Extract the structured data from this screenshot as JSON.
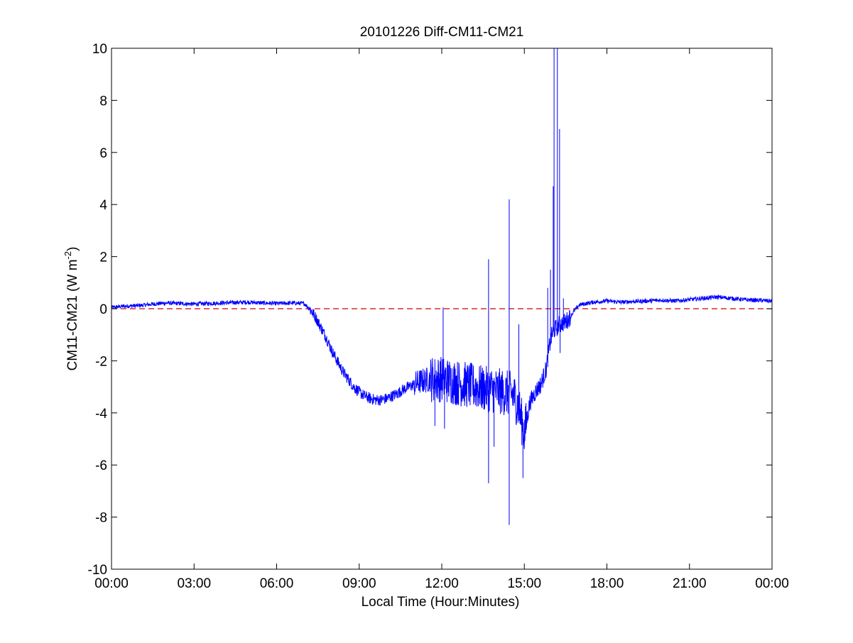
{
  "chart_data": {
    "type": "line",
    "title": "20101226 Diff-CM11-CM21",
    "xlabel": "Local Time (Hour:Minutes)",
    "ylabel_main": "CM11-CM21 (W m",
    "ylabel_sup": "-2",
    "ylabel_close": ")",
    "x_unit": "hours",
    "xlim": [
      0,
      24
    ],
    "ylim": [
      -10,
      10
    ],
    "x_tick_values": [
      0,
      3,
      6,
      9,
      12,
      15,
      18,
      21,
      24
    ],
    "x_tick_labels": [
      "00:00",
      "03:00",
      "06:00",
      "09:00",
      "12:00",
      "15:00",
      "18:00",
      "21:00",
      "00:00"
    ],
    "y_ticks": [
      10,
      8,
      6,
      4,
      2,
      0,
      -2,
      -4,
      -6,
      -8,
      -10
    ],
    "grid": false,
    "series": [
      {
        "color": "#0000ff",
        "style": "solid",
        "x": [
          0.0,
          0.5,
          1.0,
          1.5,
          2.0,
          2.5,
          3.0,
          3.5,
          4.0,
          4.5,
          5.0,
          5.5,
          6.0,
          6.5,
          7.0,
          7.2,
          7.4,
          7.6,
          7.8,
          8.0,
          8.2,
          8.4,
          8.6,
          8.8,
          9.0,
          9.2,
          9.4,
          9.6,
          9.8,
          10.0,
          10.2,
          10.4,
          10.6,
          10.8,
          11.0,
          11.2,
          11.4,
          11.6,
          11.8,
          12.0,
          12.2,
          12.4,
          12.6,
          12.8,
          13.0,
          13.2,
          13.4,
          13.6,
          13.8,
          14.0,
          14.2,
          14.4,
          14.6,
          14.8,
          15.0,
          15.2,
          15.4,
          15.6,
          15.8,
          15.9,
          16.0,
          16.1,
          16.2,
          16.3,
          16.4,
          16.5,
          16.6,
          16.8,
          17.0,
          17.5,
          18.0,
          18.5,
          19.0,
          19.5,
          20.0,
          20.5,
          21.0,
          21.5,
          22.0,
          22.5,
          23.0,
          23.5,
          24.0
        ],
        "y": [
          0.05,
          0.1,
          0.12,
          0.18,
          0.22,
          0.2,
          0.18,
          0.2,
          0.22,
          0.24,
          0.25,
          0.22,
          0.2,
          0.22,
          0.2,
          0.0,
          -0.3,
          -0.7,
          -1.1,
          -1.6,
          -2.0,
          -2.4,
          -2.7,
          -3.0,
          -3.2,
          -3.35,
          -3.45,
          -3.5,
          -3.5,
          -3.45,
          -3.35,
          -3.25,
          -3.1,
          -3.0,
          -2.9,
          -2.8,
          -2.75,
          -2.7,
          -2.7,
          -2.7,
          -2.75,
          -2.8,
          -2.85,
          -2.9,
          -2.95,
          -3.0,
          -3.05,
          -3.1,
          -3.1,
          -3.15,
          -3.2,
          -3.25,
          -3.3,
          -3.8,
          -4.8,
          -3.6,
          -3.2,
          -2.9,
          -2.3,
          -1.5,
          -1.0,
          -0.8,
          -0.7,
          -0.6,
          -0.55,
          -0.5,
          -0.4,
          -0.1,
          0.15,
          0.25,
          0.3,
          0.25,
          0.28,
          0.3,
          0.33,
          0.3,
          0.35,
          0.4,
          0.45,
          0.4,
          0.35,
          0.32,
          0.3
        ],
        "spikes": [
          {
            "x": 11.75,
            "y": -4.5
          },
          {
            "x": 12.05,
            "y": 0.05
          },
          {
            "x": 12.1,
            "y": -4.6
          },
          {
            "x": 13.7,
            "y": 1.9
          },
          {
            "x": 13.7,
            "y": -6.7
          },
          {
            "x": 13.9,
            "y": -5.3
          },
          {
            "x": 14.45,
            "y": 4.2
          },
          {
            "x": 14.45,
            "y": -8.3
          },
          {
            "x": 14.8,
            "y": -0.6
          },
          {
            "x": 14.95,
            "y": -6.5
          },
          {
            "x": 15.85,
            "y": 0.8
          },
          {
            "x": 15.95,
            "y": 1.5
          },
          {
            "x": 16.05,
            "y": 4.7
          },
          {
            "x": 16.08,
            "y": 10.0
          },
          {
            "x": 16.2,
            "y": 10.0
          },
          {
            "x": 16.28,
            "y": 6.9
          },
          {
            "x": 16.3,
            "y": -1.7
          },
          {
            "x": 16.42,
            "y": 0.4
          }
        ],
        "noise_profile": [
          {
            "x0": 0,
            "x1": 7.2,
            "amp": 0.08
          },
          {
            "x0": 7.2,
            "x1": 11.0,
            "amp": 0.22
          },
          {
            "x0": 11.0,
            "x1": 11.6,
            "amp": 0.5
          },
          {
            "x0": 11.6,
            "x1": 15.1,
            "amp": 0.9
          },
          {
            "x0": 15.1,
            "x1": 16.7,
            "amp": 0.35
          },
          {
            "x0": 16.7,
            "x1": 24,
            "amp": 0.08
          }
        ]
      },
      {
        "color": "#cc0000",
        "style": "dashed",
        "x": [
          0,
          24
        ],
        "y": [
          0,
          0
        ]
      }
    ]
  }
}
